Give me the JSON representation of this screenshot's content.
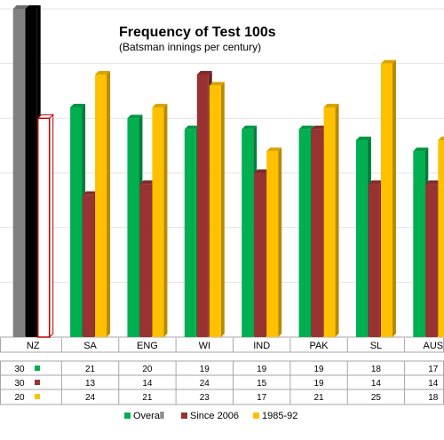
{
  "chart_data": {
    "type": "bar",
    "title": "Frequency of Test 100s",
    "subtitle": "(Batsman innings per century)",
    "categories": [
      "NZ",
      "SA",
      "ENG",
      "WI",
      "IND",
      "PAK",
      "SL",
      "AUS"
    ],
    "series": [
      {
        "name": "Overall",
        "color": "#00b050",
        "values": [
          30,
          21,
          20,
          19,
          19,
          19,
          18,
          17
        ]
      },
      {
        "name": "Since 2006",
        "color": "#993333",
        "values": [
          30,
          13,
          14,
          24,
          15,
          19,
          14,
          14
        ]
      },
      {
        "name": "1985-92",
        "color": "#ffc000",
        "values": [
          20,
          24,
          21,
          23,
          17,
          21,
          25,
          18
        ]
      }
    ],
    "highlight": {
      "category": "NZ",
      "series_colors": [
        "#808080",
        "#000000",
        "#ffffff"
      ],
      "outline_color": "#c00000"
    },
    "ylim": [
      0,
      30
    ],
    "grid": true,
    "legend_position": "bottom",
    "data_table": true
  }
}
